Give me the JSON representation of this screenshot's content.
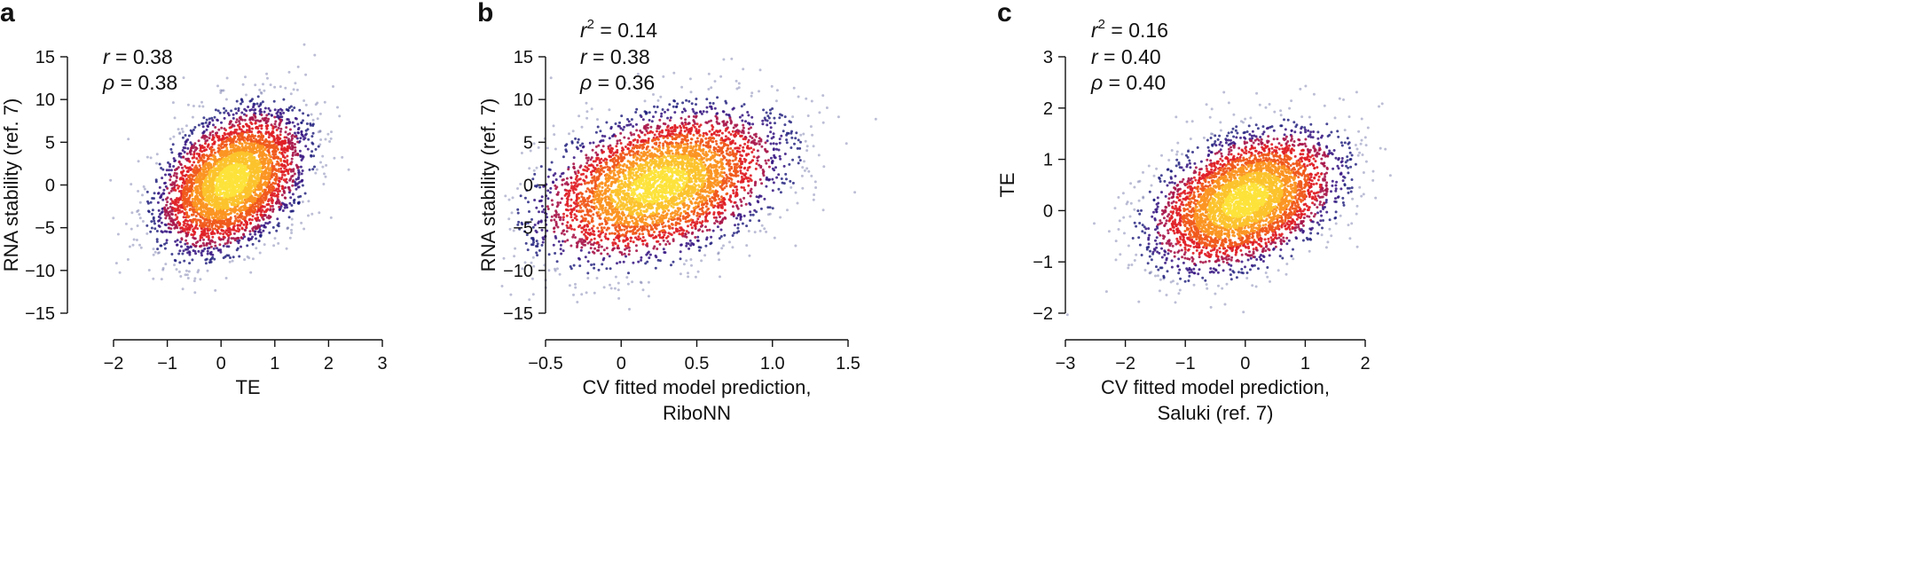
{
  "chart_data": [
    {
      "panel": "a",
      "type": "scatter",
      "title": "",
      "xlabel": [
        "TE"
      ],
      "ylabel": "RNA stability (ref. 7)",
      "xlim": [
        -2,
        3
      ],
      "ylim": [
        -15,
        15
      ],
      "xticks": [
        -2,
        -1,
        0,
        1,
        2,
        3
      ],
      "xtick_labels": [
        "−2",
        "−1",
        "0",
        "1",
        "2",
        "3"
      ],
      "yticks": [
        15,
        10,
        5,
        0,
        -5,
        -10,
        -15
      ],
      "ytick_labels": [
        "15",
        "10",
        "5",
        "0",
        "−5",
        "−10",
        "−15"
      ],
      "stats": [
        {
          "sym": "r",
          "sup": "",
          "text": " = 0.38"
        },
        {
          "sym": "ρ",
          "sup": "",
          "text": " = 0.38"
        }
      ],
      "correlation": 0.38,
      "density_center": [
        0.2,
        0.5
      ],
      "spread": [
        0.65,
        4.0
      ],
      "n_points": 4200,
      "seed": 11
    },
    {
      "panel": "b",
      "type": "scatter",
      "title": "",
      "xlabel": [
        "CV fitted model prediction,",
        "RiboNN"
      ],
      "ylabel": "RNA stability (ref. 7)",
      "xlim": [
        -0.5,
        1.5
      ],
      "ylim": [
        -15,
        15
      ],
      "xticks": [
        -0.5,
        0,
        0.5,
        1.0,
        1.5
      ],
      "xtick_labels": [
        "−0.5",
        "0",
        "0.5",
        "1.0",
        "1.5"
      ],
      "yticks": [
        15,
        10,
        5,
        0,
        -5,
        -10,
        -15
      ],
      "ytick_labels": [
        "15",
        "10",
        "5",
        "0",
        "−5",
        "−10",
        "−15"
      ],
      "stats": [
        {
          "sym": "r",
          "sup": "2",
          "text": " = 0.14"
        },
        {
          "sym": "r",
          "sup": "",
          "text": " = 0.38"
        },
        {
          "sym": "ρ",
          "sup": "",
          "text": " = 0.36"
        }
      ],
      "correlation": 0.38,
      "density_center": [
        0.25,
        0.0
      ],
      "spread": [
        0.38,
        4.2
      ],
      "n_points": 4200,
      "seed": 23
    },
    {
      "panel": "c",
      "type": "scatter",
      "title": "",
      "xlabel": [
        "CV fitted model prediction,",
        "Saluki (ref. 7)"
      ],
      "ylabel": "TE",
      "xlim": [
        -3,
        2
      ],
      "ylim": [
        -2,
        3
      ],
      "xticks": [
        -3,
        -2,
        -1,
        0,
        1,
        2
      ],
      "xtick_labels": [
        "−3",
        "−2",
        "−1",
        "0",
        "1",
        "2"
      ],
      "yticks": [
        3,
        2,
        1,
        0,
        -1,
        -2
      ],
      "ytick_labels": [
        "3",
        "2",
        "1",
        "0",
        "−1",
        "−2"
      ],
      "stats": [
        {
          "sym": "r",
          "sup": "2",
          "text": " = 0.16"
        },
        {
          "sym": "r",
          "sup": "",
          "text": " = 0.40"
        },
        {
          "sym": "ρ",
          "sup": "",
          "text": " = 0.40"
        }
      ],
      "correlation": 0.4,
      "density_center": [
        0.0,
        0.2
      ],
      "spread": [
        0.75,
        0.65
      ],
      "n_points": 4200,
      "seed": 37
    }
  ]
}
